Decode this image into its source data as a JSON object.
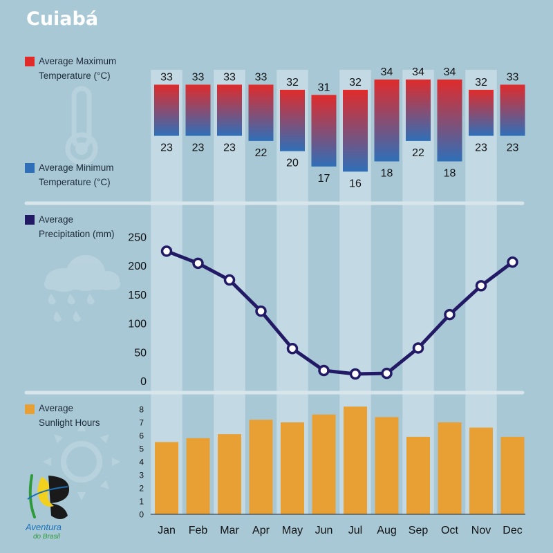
{
  "title": "Cuiabá",
  "legend": {
    "max_temp": [
      "Average Maximum",
      "Temperature (°C)"
    ],
    "min_temp": [
      "Average Minimum",
      "Temperature (°C)"
    ],
    "precip": [
      "Average",
      "Precipitation (mm)"
    ],
    "sun": [
      "Average",
      "Sunlight Hours"
    ]
  },
  "colors": {
    "background": "#a8c8d6",
    "column_highlight": "#c8dce6",
    "max_temp": "#e02b2b",
    "min_temp": "#2f6fb8",
    "precip_line": "#231a66",
    "sunlight": "#e8a035"
  },
  "icons": [
    "thermometer-icon",
    "rain-cloud-icon",
    "sun-icon",
    "aventura-do-brasil-logo"
  ],
  "logo": {
    "name": "Aventura",
    "sub": "do Brasil"
  },
  "chart_data": [
    {
      "type": "bar",
      "name": "temperature-range",
      "categories": [
        "Jan",
        "Feb",
        "Mar",
        "Apr",
        "May",
        "Jun",
        "Jul",
        "Aug",
        "Sep",
        "Oct",
        "Nov",
        "Dec"
      ],
      "series": [
        {
          "name": "Average Maximum Temperature (°C)",
          "values": [
            33,
            33,
            33,
            33,
            32,
            31,
            32,
            34,
            34,
            34,
            32,
            33
          ]
        },
        {
          "name": "Average Minimum Temperature (°C)",
          "values": [
            23,
            23,
            23,
            22,
            20,
            17,
            16,
            18,
            22,
            18,
            23,
            23
          ]
        }
      ]
    },
    {
      "type": "line",
      "name": "precipitation",
      "categories": [
        "Jan",
        "Feb",
        "Mar",
        "Apr",
        "May",
        "Jun",
        "Jul",
        "Aug",
        "Sep",
        "Oct",
        "Nov",
        "Dec"
      ],
      "series": [
        {
          "name": "Average Precipitation (mm)",
          "values": [
            225,
            204,
            175,
            121,
            56,
            18,
            12,
            13,
            57,
            115,
            165,
            206
          ]
        }
      ],
      "ylim": [
        0,
        250
      ],
      "yticks": [
        0,
        50,
        100,
        150,
        200,
        250
      ]
    },
    {
      "type": "bar",
      "name": "sunlight",
      "categories": [
        "Jan",
        "Feb",
        "Mar",
        "Apr",
        "May",
        "Jun",
        "Jul",
        "Aug",
        "Sep",
        "Oct",
        "Nov",
        "Dec"
      ],
      "series": [
        {
          "name": "Average Sunlight Hours",
          "values": [
            5.5,
            5.8,
            6.1,
            7.2,
            7.0,
            7.6,
            8.2,
            7.4,
            5.9,
            7.0,
            6.6,
            5.9
          ]
        }
      ],
      "ylim": [
        0,
        8
      ],
      "yticks": [
        0,
        1,
        2,
        3,
        4,
        5,
        6,
        7,
        8
      ]
    }
  ]
}
